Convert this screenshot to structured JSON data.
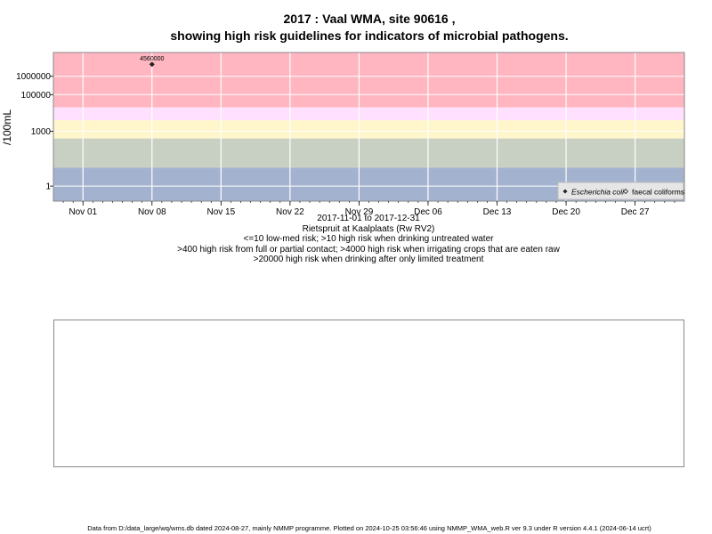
{
  "title": {
    "line1": "2017 : Vaal WMA, site 90616 ,",
    "line2": "showing high risk guidelines for indicators of microbial pathogens."
  },
  "caption": {
    "date_range": "2017-11-01 to 2017-12-31",
    "site_name": "Rietspruit at Kaalplaats (Rw RV2)",
    "risk_line1": "<=10 low-med risk; >10 high risk when drinking untreated water",
    "risk_line2": ">400 high risk from full or partial contact; >4000 high risk when irrigating crops that are eaten raw",
    "risk_line3": ">20000 high risk when drinking after only limited treatment"
  },
  "legend": {
    "ecoli": "Escherichia coli",
    "faecal": "faecal coliforms"
  },
  "footer": "Data from D:/data_large/wq/wms.db dated 2024-08-27, mainly NMMP programme. Plotted on 2024-10-25 03:56:46 using NMMP_WMA_web.R ver 9.3 under R version 4.4.1 (2024-06-14 ucrt)",
  "colors": {
    "band_low": "#a3b3cf",
    "band_gray": "#c8cfc3",
    "band_yellow": "#fff6cc",
    "band_lavender": "#ffe0ff",
    "band_pink": "#ffb6c1",
    "grid": "#ffffff",
    "marker": "#222222"
  },
  "chart_data": {
    "type": "scatter",
    "title": "2017 : Vaal WMA, site 90616 , showing high risk guidelines for indicators of microbial pathogens.",
    "ylabel": "/100mL",
    "xlabel": "2017-11-01 to 2017-12-31",
    "y_scale": "log10",
    "ylim": [
      0.15,
      20000000
    ],
    "xlim": [
      "2017-10-29",
      "2018-01-01"
    ],
    "y_ticks": [
      {
        "value": 1,
        "label": "1"
      },
      {
        "value": 1000,
        "label": "1000"
      },
      {
        "value": 100000,
        "label": "100000"
      },
      {
        "value": 1000000,
        "label": "1000000"
      }
    ],
    "x_ticks": [
      {
        "date": "2017-11-01",
        "label": "Nov 01"
      },
      {
        "date": "2017-11-08",
        "label": "Nov 08"
      },
      {
        "date": "2017-11-15",
        "label": "Nov 15"
      },
      {
        "date": "2017-11-22",
        "label": "Nov 22"
      },
      {
        "date": "2017-11-29",
        "label": "Nov 29"
      },
      {
        "date": "2017-12-06",
        "label": "Dec 06"
      },
      {
        "date": "2017-12-13",
        "label": "Dec 13"
      },
      {
        "date": "2017-12-20",
        "label": "Dec 20"
      },
      {
        "date": "2017-12-27",
        "label": "Dec 27"
      }
    ],
    "risk_bands": [
      {
        "from": 0.15,
        "to": 10,
        "color_key": "band_low"
      },
      {
        "from": 10,
        "to": 400,
        "color_key": "band_gray"
      },
      {
        "from": 400,
        "to": 4000,
        "color_key": "band_yellow"
      },
      {
        "from": 4000,
        "to": 20000,
        "color_key": "band_lavender"
      },
      {
        "from": 20000,
        "to": 20000000,
        "color_key": "band_pink"
      }
    ],
    "series": [
      {
        "name": "Escherichia coli",
        "marker": "filled-diamond",
        "points": [
          {
            "x": "2017-11-08",
            "y": 4560000,
            "label": "4560000"
          }
        ]
      },
      {
        "name": "faecal coliforms",
        "marker": "open-diamond",
        "points": []
      }
    ],
    "legend_position": "bottom-right",
    "grid": true
  }
}
